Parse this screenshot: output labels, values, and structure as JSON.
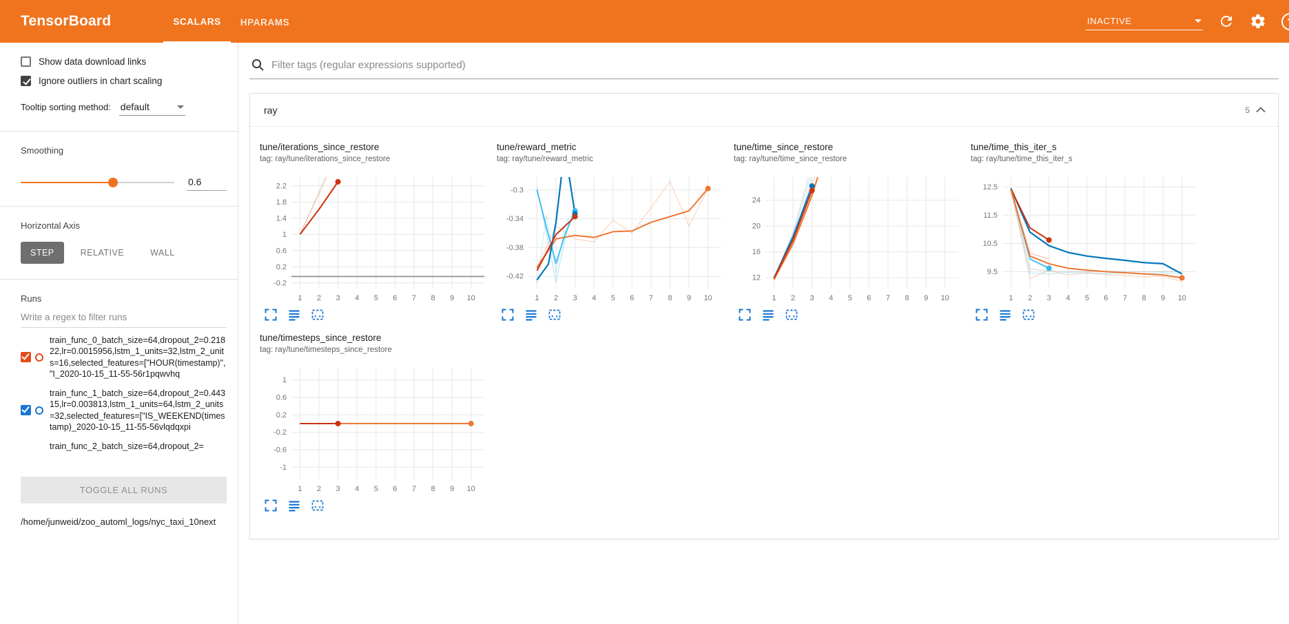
{
  "colors": {
    "header_bg": "#f0731d",
    "accent": "#f0731d",
    "chart_icon_color": "#1976d2"
  },
  "icons": {
    "help_glyph": "?",
    "names": [
      "search-icon",
      "refresh-icon",
      "gear-icon",
      "help-icon",
      "caret-down-icon",
      "chevron-up-icon",
      "expand-icon",
      "runs-menu-icon",
      "fit-domain-icon"
    ]
  },
  "header": {
    "brand": "TensorBoard",
    "tabs": [
      {
        "label": "SCALARS",
        "active": true
      },
      {
        "label": "HPARAMS",
        "active": false
      }
    ],
    "reload_select": {
      "value": "INACTIVE"
    }
  },
  "sidebar": {
    "checkboxes": [
      {
        "label": "Show data download links",
        "checked": false
      },
      {
        "label": "Ignore outliers in chart scaling",
        "checked": true
      }
    ],
    "tooltip_sorting": {
      "label": "Tooltip sorting method:",
      "value": "default"
    },
    "smoothing": {
      "label": "Smoothing",
      "value": "0.6"
    },
    "horizontal_axis": {
      "label": "Horizontal Axis",
      "options": [
        "STEP",
        "RELATIVE",
        "WALL"
      ],
      "selected": "STEP"
    },
    "runs": {
      "label": "Runs",
      "filter_placeholder": "Write a regex to filter runs",
      "items": [
        {
          "label": "train_func_0_batch_size=64,dropout_2=0.21822,lr=0.0015956,lstm_1_units=32,lstm_2_units=16,selected_features=[\"HOUR(timestamp)\", \"I_2020-10-15_11-55-56r1pqwvhq",
          "checked": true,
          "color": "#e64a19"
        },
        {
          "label": "train_func_1_batch_size=64,dropout_2=0.44315,lr=0.003813,lstm_1_units=64,lstm_2_units=32,selected_features=[\"IS_WEEKEND(timestamp)_2020-10-15_11-55-56vlqdqxpi",
          "checked": true,
          "color": "#1976d2"
        },
        {
          "label": "train_func_2_batch_size=64,dropout_2=",
          "checked": true
        }
      ],
      "toggle_all_label": "TOGGLE ALL RUNS",
      "log_dir": "/home/junweid/zoo_automl_logs/nyc_taxi_10next"
    }
  },
  "main": {
    "tag_filter_placeholder": "Filter tags (regular expressions supported)",
    "section": {
      "title": "ray",
      "badge": "5"
    }
  },
  "chart_data": [
    {
      "type": "line",
      "title": "tune/iterations_since_restore",
      "tag": "tag: ray/tune/iterations_since_restore",
      "xlim": [
        0.55,
        10.7
      ],
      "xticks": [
        1,
        2,
        3,
        4,
        5,
        6,
        7,
        8,
        9,
        10
      ],
      "ylim": [
        -0.34,
        2.42
      ],
      "yticks": [
        -0.2,
        0.2,
        0.6,
        1,
        1.4,
        1.8,
        2.2
      ],
      "series": [
        {
          "name": "run2-raw",
          "color": "#bbbbbb",
          "opacity": 0.5,
          "width": 1.2,
          "points": [
            [
              1,
              1
            ],
            [
              2,
              2.05
            ],
            [
              3,
              3.1
            ]
          ]
        },
        {
          "name": "run0-raw",
          "color": "#ee7733",
          "opacity": 0.3,
          "width": 1.2,
          "points": [
            [
              1,
              1
            ],
            [
              2,
              2
            ],
            [
              3,
              3
            ]
          ]
        },
        {
          "name": "run0-smoothed",
          "color": "#cc3311",
          "width": 2,
          "points": [
            [
              1,
              1
            ],
            [
              2,
              1.62
            ],
            [
              3,
              2.3
            ]
          ],
          "dot": [
            3,
            2.3
          ]
        },
        {
          "name": "run-flat",
          "color": "#888888",
          "width": 1.6,
          "points": [
            [
              0.55,
              -0.04
            ],
            [
              10.7,
              -0.04
            ]
          ]
        }
      ]
    },
    {
      "type": "line",
      "title": "tune/reward_metric",
      "tag": "tag: ray/tune/reward_metric",
      "xlim": [
        0.55,
        10.7
      ],
      "xticks": [
        1,
        2,
        3,
        4,
        5,
        6,
        7,
        8,
        9,
        10
      ],
      "ylim": [
        -0.437,
        -0.282
      ],
      "yticks": [
        -0.42,
        -0.38,
        -0.34,
        -0.3
      ],
      "series": [
        {
          "name": "run1-raw",
          "color": "#33bbee",
          "opacity": 0.35,
          "width": 1.2,
          "points": [
            [
              1,
              -0.296
            ],
            [
              1.5,
              -0.36
            ],
            [
              2,
              -0.428
            ],
            [
              2.5,
              -0.365
            ],
            [
              3,
              -0.325
            ]
          ]
        },
        {
          "name": "run3-raw",
          "color": "#33bbee",
          "opacity": 0.25,
          "width": 1.2,
          "points": [
            [
              1,
              -0.43
            ],
            [
              1.5,
              -0.335
            ],
            [
              2,
              -0.415
            ],
            [
              2.5,
              -0.345
            ],
            [
              3,
              -0.33
            ]
          ]
        },
        {
          "name": "run4-raw",
          "color": "#ee7733",
          "opacity": 0.3,
          "width": 1.2,
          "points": [
            [
              1,
              -0.408
            ],
            [
              2,
              -0.35
            ],
            [
              3,
              -0.368
            ],
            [
              4,
              -0.372
            ],
            [
              5,
              -0.342
            ],
            [
              6,
              -0.36
            ],
            [
              7,
              -0.325
            ],
            [
              8,
              -0.288
            ],
            [
              9,
              -0.35
            ],
            [
              10,
              -0.298
            ]
          ]
        },
        {
          "name": "run4-smoothed",
          "color": "#ee7733",
          "width": 2,
          "points": [
            [
              1,
              -0.408
            ],
            [
              2,
              -0.368
            ],
            [
              3,
              -0.363
            ],
            [
              4,
              -0.366
            ],
            [
              5,
              -0.358
            ],
            [
              6,
              -0.357
            ],
            [
              7,
              -0.345
            ],
            [
              8,
              -0.337
            ],
            [
              9,
              -0.329
            ],
            [
              10,
              -0.298
            ]
          ],
          "dot": [
            10,
            -0.298
          ]
        },
        {
          "name": "run1-smoothed",
          "color": "#33bbee",
          "opacity": 0.9,
          "width": 2,
          "points": [
            [
              1,
              -0.3
            ],
            [
              1.5,
              -0.352
            ],
            [
              2,
              -0.402
            ],
            [
              2.5,
              -0.36
            ],
            [
              3,
              -0.329
            ]
          ],
          "dot": [
            3,
            -0.329
          ]
        },
        {
          "name": "run2-smoothed",
          "color": "#0077bb",
          "width": 2.2,
          "points": [
            [
              1,
              -0.425
            ],
            [
              1.6,
              -0.403
            ],
            [
              2,
              -0.345
            ],
            [
              2.3,
              -0.278
            ],
            [
              2.6,
              -0.266
            ],
            [
              3,
              -0.333
            ]
          ],
          "dot": [
            3,
            -0.333
          ]
        },
        {
          "name": "run0-smoothed",
          "color": "#cc3311",
          "width": 2,
          "points": [
            [
              1,
              -0.412
            ],
            [
              2,
              -0.362
            ],
            [
              3,
              -0.337
            ]
          ],
          "dot": [
            3,
            -0.337
          ]
        }
      ]
    },
    {
      "type": "line",
      "title": "tune/time_since_restore",
      "tag": "tag: ray/tune/time_since_restore",
      "xlim": [
        0.55,
        10.7
      ],
      "xticks": [
        1,
        2,
        3,
        4,
        5,
        6,
        7,
        8,
        9,
        10
      ],
      "ylim": [
        10.3,
        27.6
      ],
      "yticks": [
        12,
        16,
        20,
        24
      ],
      "series": [
        {
          "name": "run2-raw",
          "color": "#bbbbbb",
          "opacity": 0.45,
          "width": 1.2,
          "points": [
            [
              1,
              11.8
            ],
            [
              2,
              19
            ],
            [
              2.9,
              28.5
            ]
          ]
        },
        {
          "name": "run3-raw",
          "color": "#bbbbbb",
          "opacity": 0.45,
          "width": 1.2,
          "points": [
            [
              1,
              11.8
            ],
            [
              2,
              17.6
            ],
            [
              3,
              27.4
            ]
          ]
        },
        {
          "name": "run4-raw",
          "color": "#ee7733",
          "opacity": 0.3,
          "width": 1.2,
          "points": [
            [
              1,
              11.7
            ],
            [
              2,
              18.2
            ],
            [
              3,
              26.3
            ],
            [
              3.4,
              30
            ]
          ]
        },
        {
          "name": "run1-raw",
          "color": "#33bbee",
          "opacity": 0.3,
          "width": 1.2,
          "points": [
            [
              1,
              11.8
            ],
            [
              2,
              18.6
            ],
            [
              2.95,
              28
            ]
          ]
        },
        {
          "name": "run4-smoothed",
          "color": "#ee7733",
          "width": 2,
          "points": [
            [
              1,
              11.7
            ],
            [
              2,
              17.2
            ],
            [
              3,
              24.7
            ],
            [
              3.5,
              29.5
            ]
          ]
        },
        {
          "name": "run2-smoothed",
          "color": "#0077bb",
          "width": 2.2,
          "points": [
            [
              1,
              11.9
            ],
            [
              2,
              18.3
            ],
            [
              3,
              26.2
            ]
          ],
          "dot": [
            3,
            26.2
          ]
        },
        {
          "name": "run0-smoothed",
          "color": "#cc3311",
          "width": 2,
          "points": [
            [
              1,
              11.9
            ],
            [
              2,
              17.8
            ],
            [
              3,
              25.5
            ]
          ],
          "dot": [
            3,
            25.5
          ]
        }
      ]
    },
    {
      "type": "line",
      "title": "tune/time_this_iter_s",
      "tag": "tag: ray/tune/time_this_iter_s",
      "xlim": [
        0.55,
        10.7
      ],
      "xticks": [
        1,
        2,
        3,
        4,
        5,
        6,
        7,
        8,
        9,
        10
      ],
      "ylim": [
        8.9,
        12.85
      ],
      "yticks": [
        9.5,
        10.5,
        11.5,
        12.5
      ],
      "series": [
        {
          "name": "run1-raw",
          "color": "#33bbee",
          "opacity": 0.3,
          "width": 1.2,
          "points": [
            [
              1,
              12.45
            ],
            [
              2,
              9.45
            ],
            [
              3,
              9.42
            ],
            [
              4,
              9.47
            ],
            [
              5,
              9.45
            ],
            [
              6,
              9.44
            ],
            [
              7,
              9.45
            ],
            [
              8,
              9.44
            ],
            [
              9,
              9.45
            ],
            [
              10,
              9.44
            ]
          ]
        },
        {
          "name": "run4-raw",
          "color": "#ee7733",
          "opacity": 0.3,
          "width": 1.2,
          "points": [
            [
              1,
              12.4
            ],
            [
              2,
              9.25
            ],
            [
              3,
              9.55
            ],
            [
              4,
              9.38
            ],
            [
              5,
              9.46
            ],
            [
              6,
              9.4
            ],
            [
              7,
              9.36
            ],
            [
              8,
              9.32
            ],
            [
              9,
              9.33
            ],
            [
              10,
              9.15
            ]
          ]
        },
        {
          "name": "run0-raw",
          "color": "#cc3311",
          "opacity": 0.3,
          "width": 1.2,
          "points": [
            [
              1,
              12.42
            ],
            [
              2,
              10.15
            ],
            [
              3,
              9.95
            ]
          ]
        },
        {
          "name": "run2-raw",
          "color": "#bbbbbb",
          "opacity": 0.5,
          "width": 1.2,
          "points": [
            [
              1,
              12.45
            ],
            [
              2,
              9.6
            ],
            [
              3,
              9.52
            ],
            [
              4,
              9.5
            ],
            [
              5,
              9.5
            ],
            [
              6,
              9.5
            ],
            [
              7,
              9.5
            ],
            [
              8,
              9.5
            ],
            [
              9,
              9.5
            ],
            [
              10,
              9.5
            ]
          ]
        },
        {
          "name": "run1-smoothed",
          "color": "#33bbee",
          "opacity": 0.9,
          "width": 2,
          "points": [
            [
              1,
              12.45
            ],
            [
              2,
              9.95
            ],
            [
              3,
              9.62
            ]
          ],
          "dot": [
            3,
            9.62
          ]
        },
        {
          "name": "run2-smoothed",
          "color": "#0077bb",
          "width": 2.2,
          "points": [
            [
              1,
              12.45
            ],
            [
              2,
              10.9
            ],
            [
              3,
              10.42
            ],
            [
              4,
              10.18
            ],
            [
              5,
              10.05
            ],
            [
              6,
              9.97
            ],
            [
              7,
              9.9
            ],
            [
              8,
              9.82
            ],
            [
              9,
              9.78
            ],
            [
              10,
              9.42
            ]
          ]
        },
        {
          "name": "run0-smoothed",
          "color": "#cc3311",
          "width": 2,
          "points": [
            [
              1,
              12.42
            ],
            [
              2,
              11.05
            ],
            [
              3,
              10.62
            ]
          ],
          "dot": [
            3,
            10.62
          ]
        },
        {
          "name": "run4-smoothed",
          "color": "#ee7733",
          "width": 2,
          "points": [
            [
              1,
              12.4
            ],
            [
              2,
              10.05
            ],
            [
              3,
              9.78
            ],
            [
              4,
              9.62
            ],
            [
              5,
              9.55
            ],
            [
              6,
              9.5
            ],
            [
              7,
              9.46
            ],
            [
              8,
              9.42
            ],
            [
              9,
              9.38
            ],
            [
              10,
              9.28
            ]
          ],
          "dot": [
            10,
            9.28
          ]
        }
      ]
    },
    {
      "type": "line",
      "title": "tune/timesteps_since_restore",
      "tag": "tag: ray/tune/timesteps_since_restore",
      "xlim": [
        0.55,
        10.7
      ],
      "xticks": [
        1,
        2,
        3,
        4,
        5,
        6,
        7,
        8,
        9,
        10
      ],
      "ylim": [
        -1.28,
        1.28
      ],
      "yticks": [
        -1,
        -0.6,
        -0.2,
        0.2,
        0.6,
        1
      ],
      "series": [
        {
          "name": "run2-smoothed",
          "color": "#0077bb",
          "width": 2,
          "points": [
            [
              1,
              0
            ],
            [
              3,
              0
            ]
          ]
        },
        {
          "name": "run4-smoothed",
          "color": "#ee7733",
          "width": 2,
          "points": [
            [
              1,
              0
            ],
            [
              10,
              0
            ]
          ],
          "dot": [
            10,
            0
          ]
        },
        {
          "name": "run0-smoothed",
          "color": "#cc3311",
          "width": 2,
          "points": [
            [
              1,
              0
            ],
            [
              3,
              0
            ]
          ],
          "dot": [
            3,
            0
          ]
        }
      ]
    }
  ]
}
